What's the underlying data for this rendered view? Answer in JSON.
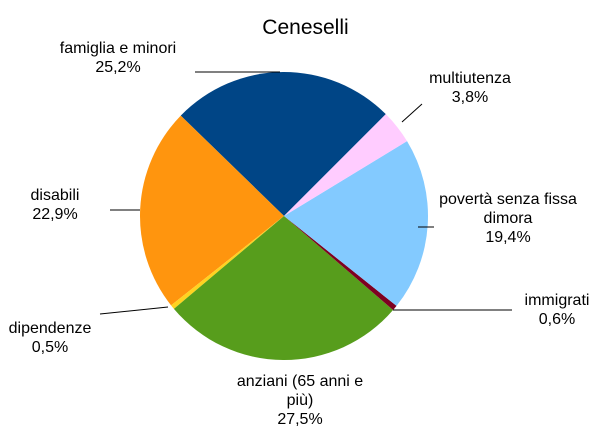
{
  "chart_data": {
    "type": "pie",
    "title": "Ceneselli",
    "categories": [
      "multiutenza",
      "povertà senza fissa dimora",
      "immigrati",
      "anziani (65 anni e più)",
      "dipendenze",
      "disabili",
      "famiglia e minori"
    ],
    "values": [
      3.8,
      19.4,
      0.6,
      27.5,
      0.5,
      22.9,
      25.2
    ],
    "value_labels": [
      "3,8%",
      "19,4%",
      "0,6%",
      "27,5%",
      "0,5%",
      "22,9%",
      "25,2%"
    ],
    "colors": [
      "#ffccff",
      "#83caff",
      "#7e0021",
      "#579d1c",
      "#ffd320",
      "#ff950e",
      "#004586"
    ]
  }
}
